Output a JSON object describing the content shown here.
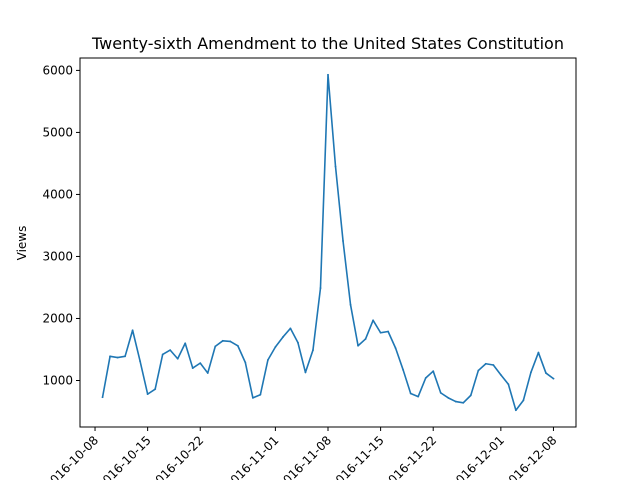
{
  "chart_data": {
    "type": "line",
    "title": "Twenty-sixth Amendment to the United States Constitution",
    "xlabel": "",
    "ylabel": "Views",
    "x_tick_labels": [
      "2016-10-08",
      "2016-10-15",
      "2016-10-22",
      "2016-11-01",
      "2016-11-08",
      "2016-11-15",
      "2016-11-22",
      "2016-12-01",
      "2016-12-08"
    ],
    "y_ticks": [
      1000,
      2000,
      3000,
      4000,
      5000,
      6000
    ],
    "xlim": [
      "2016-10-06",
      "2016-12-11"
    ],
    "ylim": [
      250,
      6200
    ],
    "grid": false,
    "series_color": "#1f77b4",
    "series": [
      {
        "x": [
          "2016-10-09",
          "2016-10-10",
          "2016-10-11",
          "2016-10-12",
          "2016-10-13",
          "2016-10-14",
          "2016-10-15",
          "2016-10-16",
          "2016-10-17",
          "2016-10-18",
          "2016-10-19",
          "2016-10-20",
          "2016-10-21",
          "2016-10-22",
          "2016-10-23",
          "2016-10-24",
          "2016-10-25",
          "2016-10-26",
          "2016-10-27",
          "2016-10-28",
          "2016-10-29",
          "2016-10-30",
          "2016-10-31",
          "2016-11-01",
          "2016-11-02",
          "2016-11-03",
          "2016-11-04",
          "2016-11-05",
          "2016-11-06",
          "2016-11-07",
          "2016-11-08",
          "2016-11-09",
          "2016-11-10",
          "2016-11-11",
          "2016-11-12",
          "2016-11-13",
          "2016-11-14",
          "2016-11-15",
          "2016-11-16",
          "2016-11-17",
          "2016-11-18",
          "2016-11-19",
          "2016-11-20",
          "2016-11-21",
          "2016-11-22",
          "2016-11-23",
          "2016-11-24",
          "2016-11-25",
          "2016-11-26",
          "2016-11-27",
          "2016-11-28",
          "2016-11-29",
          "2016-11-30",
          "2016-12-01",
          "2016-12-02",
          "2016-12-03",
          "2016-12-04",
          "2016-12-05",
          "2016-12-06",
          "2016-12-07",
          "2016-12-08"
        ],
        "values": [
          730,
          1390,
          1370,
          1390,
          1810,
          1310,
          780,
          860,
          1420,
          1490,
          1350,
          1600,
          1200,
          1280,
          1120,
          1550,
          1640,
          1630,
          1560,
          1290,
          720,
          770,
          1330,
          1540,
          1700,
          1840,
          1610,
          1130,
          1490,
          2490,
          5930,
          4450,
          3250,
          2220,
          1560,
          1670,
          1970,
          1770,
          1790,
          1520,
          1170,
          790,
          740,
          1040,
          1150,
          800,
          720,
          660,
          640,
          760,
          1160,
          1270,
          1250,
          1090,
          940,
          520,
          680,
          1130,
          1450,
          1120,
          1030
        ]
      }
    ]
  }
}
